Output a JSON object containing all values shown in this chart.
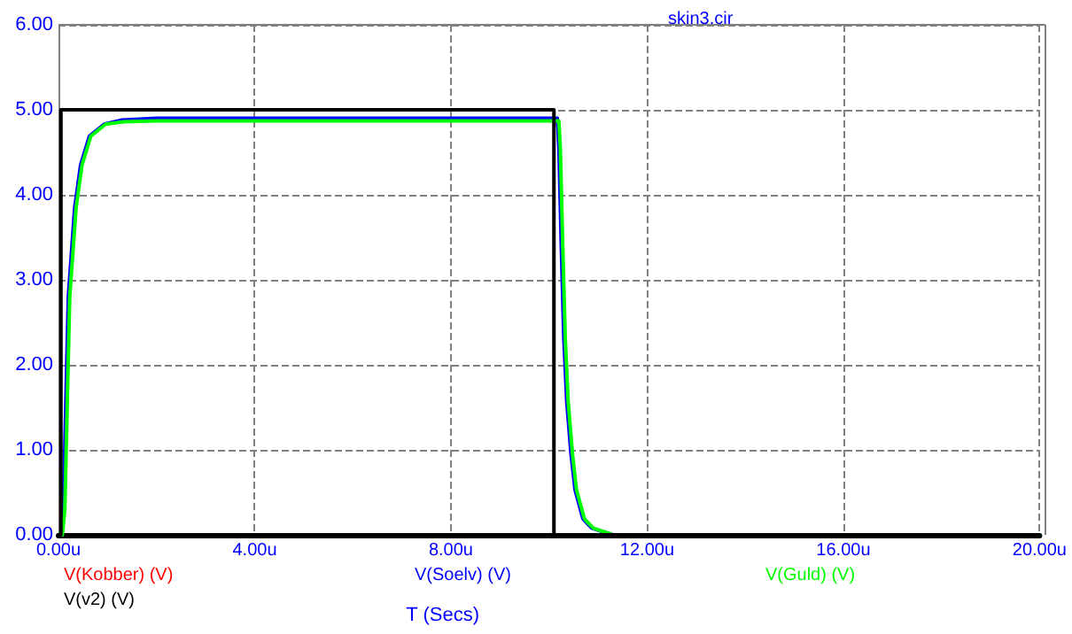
{
  "chart_data": {
    "type": "line",
    "title": "skin3.cir",
    "xlabel": "T (Secs)",
    "xlim": [
      0,
      20
    ],
    "xticks": [
      {
        "value": 0,
        "label": "0.00u"
      },
      {
        "value": 4,
        "label": "4.00u"
      },
      {
        "value": 8,
        "label": "8.00u"
      },
      {
        "value": 12,
        "label": "12.00u"
      },
      {
        "value": 16,
        "label": "16.00u"
      },
      {
        "value": 20,
        "label": "20.00u"
      }
    ],
    "ylim": [
      0,
      6
    ],
    "yticks": [
      {
        "value": 0,
        "label": "0.00"
      },
      {
        "value": 1,
        "label": "1.00"
      },
      {
        "value": 2,
        "label": "2.00"
      },
      {
        "value": 3,
        "label": "3.00"
      },
      {
        "value": 4,
        "label": "4.00"
      },
      {
        "value": 5,
        "label": "5.00"
      },
      {
        "value": 6,
        "label": "6.00"
      }
    ],
    "grid": true,
    "legend": "bottom",
    "line_style": "solid",
    "marker": "none",
    "series": [
      {
        "name": "V(Kobber) (V)",
        "color": "#ff0000"
      },
      {
        "name": "V(Soelv) (V)",
        "color": "#0000ff",
        "x": [
          0.05,
          0.1,
          0.15,
          0.2,
          0.33,
          0.45,
          0.63,
          0.93,
          1.3,
          2,
          10.17,
          10.2,
          10.25,
          10.3,
          10.36,
          10.45,
          10.53,
          10.69,
          10.87,
          11.3,
          20
        ],
        "values": [
          0,
          0.3,
          1.56,
          2.8,
          3.85,
          4.35,
          4.69,
          4.83,
          4.88,
          4.9,
          4.9,
          4.56,
          3.4,
          2.33,
          1.57,
          0.94,
          0.53,
          0.19,
          0.08,
          0,
          0
        ]
      },
      {
        "name": "V(Guld) (V)",
        "color": "#00ff00",
        "x": [
          0.08,
          0.13,
          0.18,
          0.23,
          0.36,
          0.48,
          0.66,
          0.96,
          1.33,
          2,
          10.2,
          10.23,
          10.28,
          10.33,
          10.39,
          10.48,
          10.56,
          10.72,
          10.9,
          11.3,
          20
        ],
        "values": [
          0,
          0.3,
          1.56,
          2.8,
          3.85,
          4.35,
          4.69,
          4.83,
          4.86,
          4.87,
          4.87,
          4.56,
          3.4,
          2.33,
          1.57,
          0.94,
          0.53,
          0.19,
          0.08,
          0,
          0
        ]
      },
      {
        "name": "V(v2) (V)",
        "color": "#000000",
        "x": [
          0,
          0.05,
          0.05,
          10.1,
          10.1,
          20
        ],
        "values": [
          0,
          0,
          5,
          5,
          0,
          0
        ]
      }
    ]
  }
}
